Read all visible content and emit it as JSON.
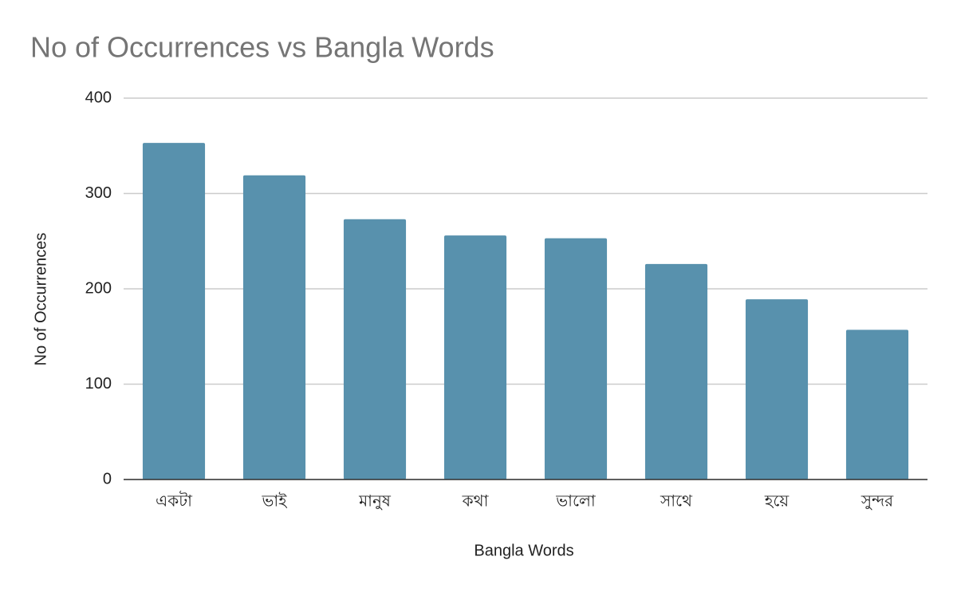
{
  "chart_data": {
    "type": "bar",
    "title": "No of Occurrences vs Bangla Words",
    "x_label": "Bangla Words",
    "y_label": "No of Occurrences",
    "categories": [
      "একটা",
      "ভাই",
      "মানুষ",
      "কথা",
      "ভালো",
      "সাথে",
      "হয়ে",
      "সুন্দর"
    ],
    "values": [
      353,
      319,
      273,
      256,
      253,
      226,
      189,
      157
    ],
    "color": "#5891ad",
    "ylim": [
      0,
      400
    ],
    "yticks": [
      0,
      100,
      200,
      300,
      400
    ],
    "grid": true
  }
}
